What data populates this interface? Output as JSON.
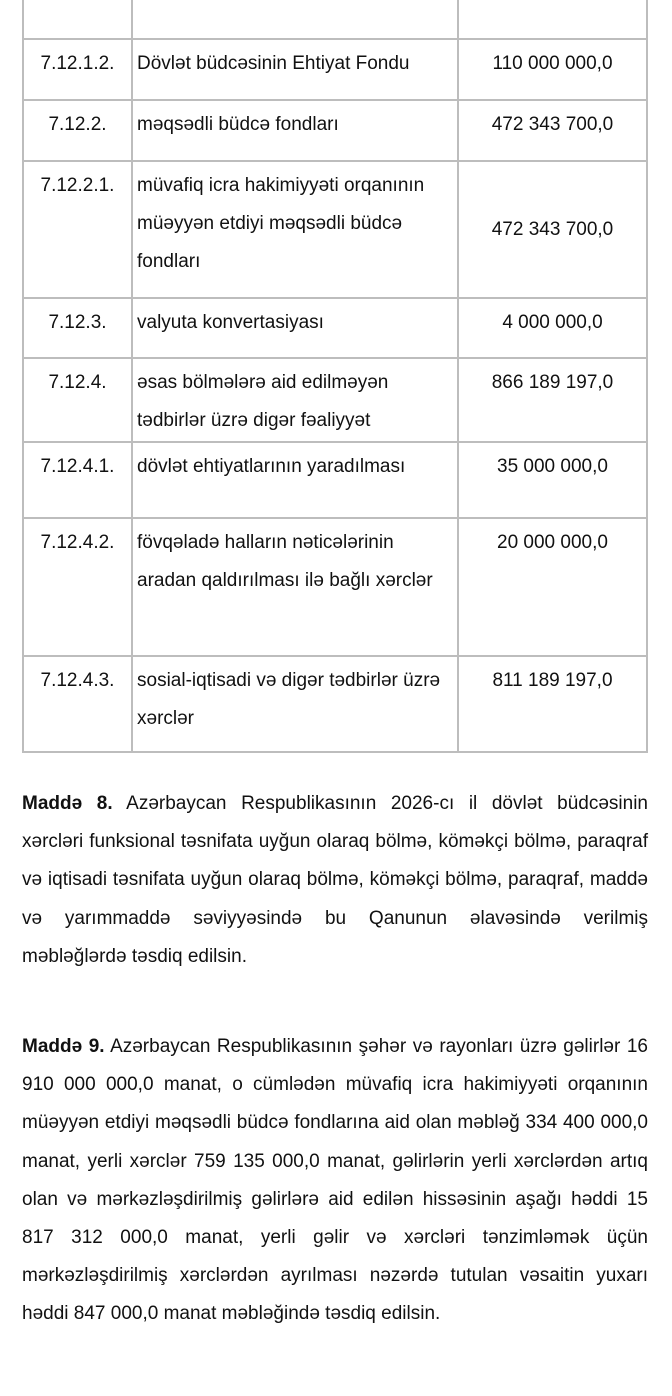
{
  "table": {
    "rows": [
      {
        "code": "",
        "name": "",
        "amount": ""
      },
      {
        "code": "7.12.1.2.",
        "name": "Dövlət büdcəsinin Ehtiyat Fondu",
        "amount": "110 000 000,0"
      },
      {
        "code": "7.12.2.",
        "name": "məqsədli büdcə fondları",
        "amount": "472 343 700,0"
      },
      {
        "code": "7.12.2.1.",
        "name": "müvafiq icra hakimiyyəti orqanının müəyyən etdiyi məqsədli büdcə fondları",
        "amount": "472 343 700,0"
      },
      {
        "code": "7.12.3.",
        "name": "valyuta konvertasiyası",
        "amount": "4 000 000,0"
      },
      {
        "code": "7.12.4.",
        "name": "əsas bölmələrə aid edilməyən tədbirlər üzrə digər fəaliyyət",
        "amount": "866 189 197,0"
      },
      {
        "code": "7.12.4.1.",
        "name": "dövlət ehtiyatlarının yaradılması",
        "amount": "35 000 000,0"
      },
      {
        "code": "7.12.4.2.",
        "name": "fövqəladə halların nəticələrinin aradan qaldırılması ilə bağlı xərclər",
        "amount": "20 000 000,0"
      },
      {
        "code": "7.12.4.3.",
        "name": "sosial-iqtisadi və digər tədbirlər üzrə xərclər",
        "amount": "811 189 197,0"
      }
    ]
  },
  "articles": [
    {
      "heading": "Maddə 8.",
      "text": "Azərbaycan Respublikasının 2026-cı il dövlət büdcəsinin xərcləri funksional təsnifata uyğun olaraq bölmə, köməkçi bölmə, paraqraf və iqtisadi təsnifata uyğun olaraq bölmə, köməkçi bölmə, paraqraf, maddə və yarımmaddə səviyyəsində bu Qanunun əlavəsində verilmiş məbləğlərdə təsdiq edilsin."
    },
    {
      "heading": "Maddə 9.",
      "text": "Azərbaycan Respublikasının şəhər və rayonları üzrə gəlirlər 16 910 000 000,0 manat, o cümlədən müvafiq icra hakimiyyəti orqanının müəyyən etdiyi məqsədli büdcə fondlarına aid olan məbləğ 334 400 000,0 manat, yerli xərclər 759 135 000,0 manat, gəlirlərin yerli xərclərdən artıq olan və mərkəzləşdirilmiş gəlirlərə aid edilən hissəsinin aşağı həddi 15 817 312 000,0 manat, yerli gəlir və xərcləri tənzimləmək üçün mərkəzləşdirilmiş xərclərdən ayrılması nəzərdə tutulan vəsaitin yuxarı həddi 847 000,0 manat məbləğində təsdiq edilsin."
    }
  ]
}
